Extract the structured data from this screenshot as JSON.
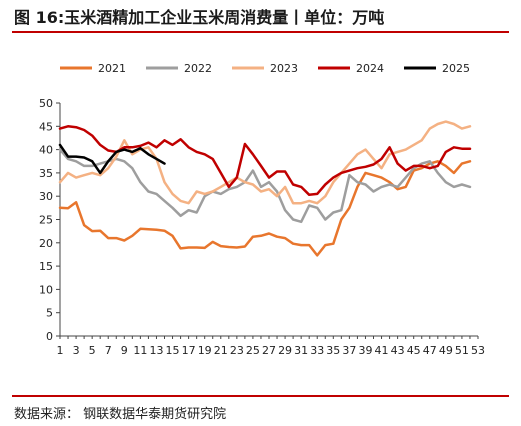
{
  "header": {
    "title": "图 16:玉米酒精加工企业玉米周消费量丨单位：万吨"
  },
  "footer": {
    "source": "数据来源：  钢联数据华泰期货研究院"
  },
  "chart_data": {
    "type": "line",
    "title": "图 16:玉米酒精加工企业玉米周消费量丨单位：万吨",
    "xlabel": "",
    "ylabel": "",
    "ylim": [
      0,
      50
    ],
    "xlim": [
      1,
      53
    ],
    "y_ticks": [
      0,
      5,
      10,
      15,
      20,
      25,
      30,
      35,
      40,
      45,
      50
    ],
    "x_ticks": [
      1,
      3,
      5,
      7,
      9,
      11,
      13,
      15,
      17,
      19,
      21,
      23,
      25,
      27,
      29,
      31,
      33,
      35,
      37,
      39,
      41,
      43,
      45,
      47,
      49,
      51,
      53
    ],
    "legend_position": "top",
    "grid": false,
    "series": [
      {
        "name": "2021",
        "color": "#e8762d",
        "x": [
          1,
          2,
          3,
          4,
          5,
          6,
          7,
          8,
          9,
          10,
          11,
          12,
          13,
          14,
          15,
          16,
          17,
          18,
          19,
          20,
          21,
          22,
          23,
          24,
          25,
          26,
          27,
          28,
          29,
          30,
          31,
          32,
          33,
          34,
          35,
          36,
          37,
          38,
          39,
          40,
          41,
          42,
          43,
          44,
          45,
          46,
          47,
          48,
          49,
          50,
          51,
          52
        ],
        "values": [
          27.5,
          27.4,
          28.7,
          23.8,
          22.5,
          22.6,
          21,
          21,
          20.5,
          21.5,
          23,
          22.9,
          22.8,
          22.6,
          21.5,
          18.8,
          19,
          19,
          18.9,
          20.2,
          19.3,
          19.1,
          19,
          19.2,
          21.3,
          21.5,
          22,
          21.3,
          21,
          19.8,
          19.5,
          19.5,
          17.3,
          19.5,
          19.8,
          25,
          27.5,
          32,
          35,
          34.5,
          34,
          33,
          31.5,
          32,
          35.5,
          36,
          37,
          37.5,
          36.5,
          35,
          37,
          37.5
        ]
      },
      {
        "name": "2022",
        "color": "#9e9e9e",
        "x": [
          1,
          2,
          3,
          4,
          5,
          6,
          7,
          8,
          9,
          10,
          11,
          12,
          13,
          14,
          15,
          16,
          17,
          18,
          19,
          20,
          21,
          22,
          23,
          24,
          25,
          26,
          27,
          28,
          29,
          30,
          31,
          32,
          33,
          34,
          35,
          36,
          37,
          38,
          39,
          40,
          41,
          42,
          43,
          44,
          45,
          46,
          47,
          48,
          49,
          50,
          51,
          52
        ],
        "values": [
          40,
          38,
          37.5,
          36.5,
          36.5,
          37,
          37.5,
          38,
          37.5,
          36,
          33,
          31,
          30.5,
          29,
          27.5,
          25.8,
          27,
          26.5,
          30,
          31,
          30.5,
          31.5,
          32,
          33,
          35.5,
          32,
          33,
          31,
          27,
          25,
          24.5,
          28,
          27.5,
          25,
          26.5,
          27,
          34.5,
          33,
          32.5,
          31,
          32,
          32.5,
          32,
          34,
          36,
          37,
          37.5,
          35,
          33,
          32,
          32.5,
          32
        ]
      },
      {
        "name": "2023",
        "color": "#f4b183",
        "x": [
          1,
          2,
          3,
          4,
          5,
          6,
          7,
          8,
          9,
          10,
          11,
          12,
          13,
          14,
          15,
          16,
          17,
          18,
          19,
          20,
          21,
          22,
          23,
          24,
          25,
          26,
          27,
          28,
          29,
          30,
          31,
          32,
          33,
          34,
          35,
          36,
          37,
          38,
          39,
          40,
          41,
          42,
          43,
          44,
          45,
          46,
          47,
          48,
          49,
          50,
          51,
          52
        ],
        "values": [
          33,
          35,
          34,
          34.5,
          35,
          34.5,
          36,
          38.5,
          42,
          39,
          40,
          40.5,
          38,
          33,
          30.5,
          29,
          28.5,
          31,
          30.5,
          31,
          32,
          33,
          34,
          33,
          32.5,
          31,
          31.5,
          30,
          32,
          28.5,
          28.5,
          29,
          28.5,
          30,
          33,
          35,
          37,
          39,
          40,
          38,
          36,
          39,
          39.5,
          40,
          41,
          42,
          44.5,
          45.5,
          46,
          45.5,
          44.5,
          45
        ]
      },
      {
        "name": "2024",
        "color": "#c00000",
        "x": [
          1,
          2,
          3,
          4,
          5,
          6,
          7,
          8,
          9,
          10,
          11,
          12,
          13,
          14,
          15,
          16,
          17,
          18,
          19,
          20,
          21,
          22,
          23,
          24,
          25,
          26,
          27,
          28,
          29,
          30,
          31,
          32,
          33,
          34,
          35,
          36,
          37,
          38,
          39,
          40,
          41,
          42,
          43,
          44,
          45,
          46,
          47,
          48,
          49,
          50,
          51,
          52
        ],
        "values": [
          44.5,
          45,
          44.8,
          44.2,
          43,
          41,
          39.8,
          39.5,
          40.5,
          40.5,
          40.8,
          41.5,
          40.5,
          42,
          41,
          42.2,
          40.5,
          39.5,
          39,
          38,
          35,
          32,
          34,
          41.2,
          39,
          36.5,
          34,
          35.3,
          35.3,
          32.5,
          32,
          30.3,
          30.5,
          32.5,
          34,
          35,
          35.5,
          36,
          36.3,
          36.8,
          38,
          40.5,
          37,
          35.5,
          36.5,
          36.5,
          36,
          36.5,
          39.5,
          40.5,
          40.2,
          40.2
        ]
      },
      {
        "name": "2025",
        "color": "#000000",
        "x": [
          1,
          2,
          3,
          4,
          5,
          6,
          7,
          8,
          9,
          10,
          11,
          12,
          13,
          14
        ],
        "values": [
          41,
          38.5,
          38.5,
          38.3,
          37.5,
          35,
          37.5,
          39.5,
          40,
          39.5,
          40.3,
          39,
          38,
          37
        ]
      }
    ]
  }
}
